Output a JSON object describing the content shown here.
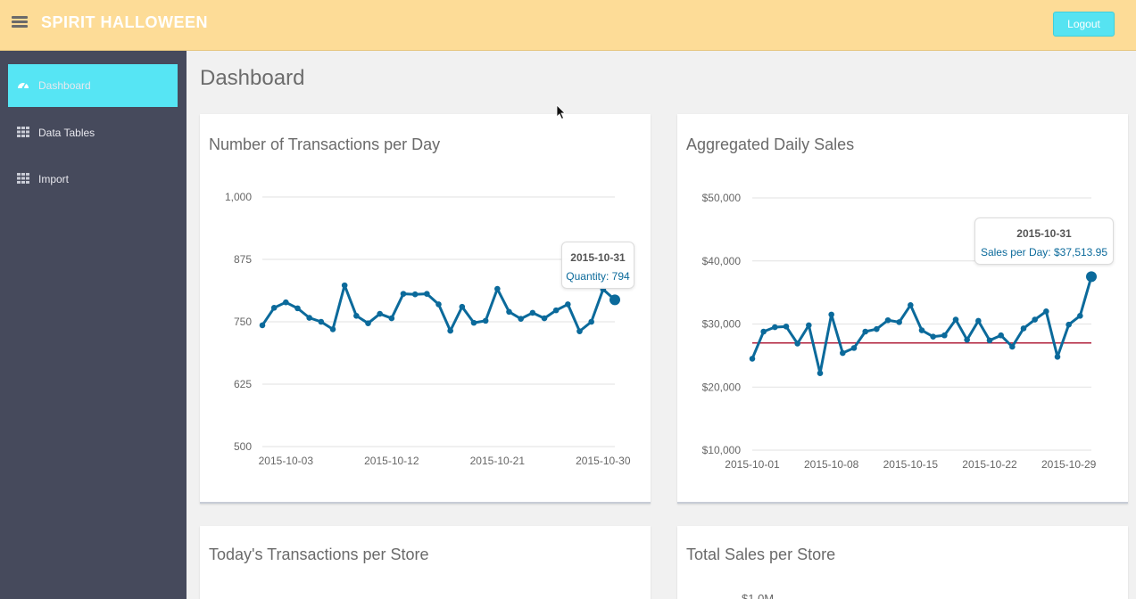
{
  "header": {
    "brand": "SPIRIT HALLOWEEN",
    "logout_label": "Logout",
    "menu_icon": "hamburger-icon"
  },
  "sidebar": {
    "items": [
      {
        "label": "Dashboard",
        "icon": "dashboard-gauge-icon",
        "active": true
      },
      {
        "label": "Data Tables",
        "icon": "grid-icon",
        "active": false
      },
      {
        "label": "Import",
        "icon": "grid-icon",
        "active": false
      }
    ]
  },
  "page": {
    "title": "Dashboard"
  },
  "colors": {
    "header_bg": "#fddc97",
    "sidebar_bg": "#464a5c",
    "accent": "#56e5f4",
    "series": "#0b6a9b",
    "threshold": "#b0223c"
  },
  "cards": {
    "transactions_title": "Number of Transactions per Day",
    "sales_title": "Aggregated Daily Sales",
    "store_transactions_title": "Today's Transactions per Store",
    "store_sales_title": "Total Sales per Store",
    "store_sales_partial_tick": "$1.0M"
  },
  "chart_data": [
    {
      "type": "line",
      "title": "Number of Transactions per Day",
      "x": [
        "2015-10-01",
        "2015-10-02",
        "2015-10-03",
        "2015-10-04",
        "2015-10-05",
        "2015-10-06",
        "2015-10-07",
        "2015-10-08",
        "2015-10-09",
        "2015-10-10",
        "2015-10-11",
        "2015-10-12",
        "2015-10-13",
        "2015-10-14",
        "2015-10-15",
        "2015-10-16",
        "2015-10-17",
        "2015-10-18",
        "2015-10-19",
        "2015-10-20",
        "2015-10-21",
        "2015-10-22",
        "2015-10-23",
        "2015-10-24",
        "2015-10-25",
        "2015-10-26",
        "2015-10-27",
        "2015-10-28",
        "2015-10-29",
        "2015-10-30",
        "2015-10-31"
      ],
      "values": [
        743,
        778,
        789,
        777,
        758,
        750,
        735,
        823,
        762,
        747,
        766,
        757,
        806,
        805,
        806,
        785,
        732,
        780,
        748,
        752,
        816,
        770,
        756,
        768,
        757,
        773,
        785,
        731,
        750,
        815,
        794
      ],
      "xticks": [
        "2015-10-03",
        "2015-10-12",
        "2015-10-21",
        "2015-10-30"
      ],
      "yticks": [
        "500",
        "625",
        "750",
        "875",
        "1,000"
      ],
      "ylim": [
        500,
        1000
      ],
      "grid": true,
      "tooltip": {
        "date": "2015-10-31",
        "text": "Quantity: 794"
      }
    },
    {
      "type": "line",
      "title": "Aggregated Daily Sales",
      "x": [
        "2015-10-01",
        "2015-10-02",
        "2015-10-03",
        "2015-10-04",
        "2015-10-05",
        "2015-10-06",
        "2015-10-07",
        "2015-10-08",
        "2015-10-09",
        "2015-10-10",
        "2015-10-11",
        "2015-10-12",
        "2015-10-13",
        "2015-10-14",
        "2015-10-15",
        "2015-10-16",
        "2015-10-17",
        "2015-10-18",
        "2015-10-19",
        "2015-10-20",
        "2015-10-21",
        "2015-10-22",
        "2015-10-23",
        "2015-10-24",
        "2015-10-25",
        "2015-10-26",
        "2015-10-27",
        "2015-10-28",
        "2015-10-29",
        "2015-10-30",
        "2015-10-31"
      ],
      "values": [
        24500,
        28800,
        29500,
        29600,
        26900,
        29800,
        22200,
        31500,
        25400,
        26200,
        28800,
        29200,
        30600,
        30300,
        33000,
        29000,
        28000,
        28200,
        30700,
        27500,
        30500,
        27400,
        28200,
        26400,
        29300,
        30700,
        32000,
        24800,
        29900,
        31300,
        37513.95
      ],
      "xticks": [
        "2015-10-01",
        "2015-10-08",
        "2015-10-15",
        "2015-10-22",
        "2015-10-29"
      ],
      "yticks": [
        "$10,000",
        "$20,000",
        "$30,000",
        "$40,000",
        "$50,000"
      ],
      "ylim": [
        10000,
        50000
      ],
      "threshold": 27000,
      "grid": true,
      "tooltip": {
        "date": "2015-10-31",
        "text": "Sales per Day: $37,513.95"
      }
    }
  ]
}
